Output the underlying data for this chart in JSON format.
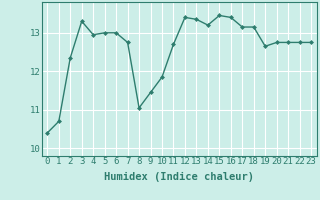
{
  "x": [
    0,
    1,
    2,
    3,
    4,
    5,
    6,
    7,
    8,
    9,
    10,
    11,
    12,
    13,
    14,
    15,
    16,
    17,
    18,
    19,
    20,
    21,
    22,
    23
  ],
  "y": [
    10.4,
    10.7,
    12.35,
    13.3,
    12.95,
    13.0,
    13.0,
    12.75,
    11.05,
    11.45,
    11.85,
    12.7,
    13.4,
    13.35,
    13.2,
    13.45,
    13.4,
    13.15,
    13.15,
    12.65,
    12.75,
    12.75,
    12.75,
    12.75
  ],
  "line_color": "#2e7d6e",
  "marker": "D",
  "marker_size": 2.0,
  "bg_color": "#cceee8",
  "grid_color": "#ffffff",
  "xlabel": "Humidex (Indice chaleur)",
  "ylim": [
    9.8,
    13.8
  ],
  "xlim": [
    -0.5,
    23.5
  ],
  "yticks": [
    10,
    11,
    12,
    13
  ],
  "xticks": [
    0,
    1,
    2,
    3,
    4,
    5,
    6,
    7,
    8,
    9,
    10,
    11,
    12,
    13,
    14,
    15,
    16,
    17,
    18,
    19,
    20,
    21,
    22,
    23
  ],
  "xlabel_fontsize": 7.5,
  "tick_fontsize": 6.5,
  "line_width": 1.0
}
